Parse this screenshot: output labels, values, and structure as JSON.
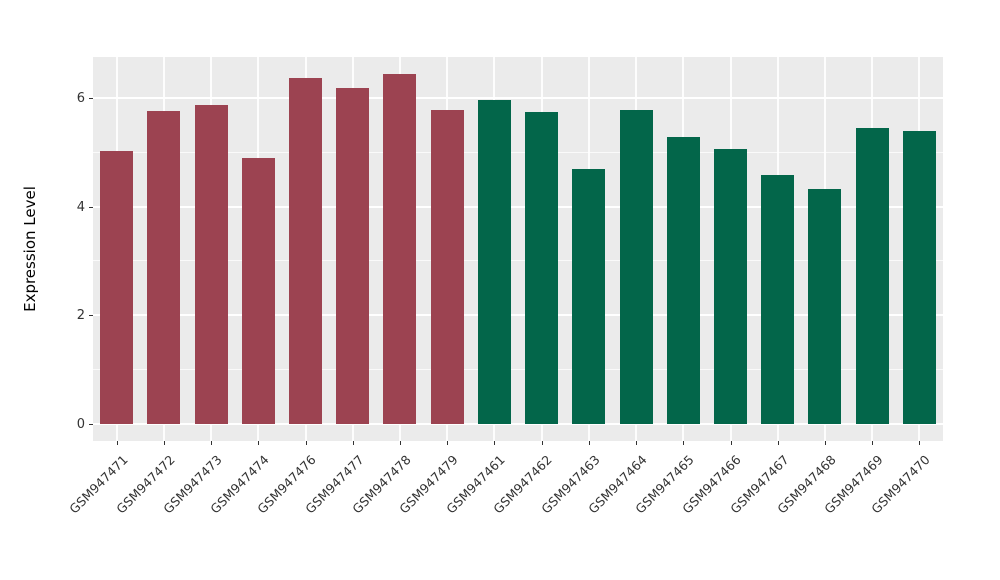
{
  "figure": {
    "background": "#ffffff",
    "panel_background": "#ebebeb",
    "grid_color": "#ffffff",
    "axis_text_color": "#333333",
    "axis_title_color": "#000000"
  },
  "chart_data": {
    "type": "bar",
    "title": "",
    "xlabel": "",
    "ylabel": "Expression Level",
    "ylim": [
      -0.34,
      6.8
    ],
    "yticks": [
      0,
      2,
      4,
      6
    ],
    "minor_yticks": [
      1,
      3,
      5
    ],
    "grid": true,
    "legend_position": "none",
    "categories": [
      "GSM947471",
      "GSM947472",
      "GSM947473",
      "GSM947474",
      "GSM947476",
      "GSM947477",
      "GSM947478",
      "GSM947479",
      "GSM947461",
      "GSM947462",
      "GSM947463",
      "GSM947464",
      "GSM947465",
      "GSM947466",
      "GSM947467",
      "GSM947468",
      "GSM947469",
      "GSM947470"
    ],
    "values": [
      5.03,
      5.76,
      5.88,
      4.9,
      6.37,
      6.18,
      6.45,
      5.78,
      5.97,
      5.74,
      4.69,
      5.78,
      5.28,
      5.06,
      4.58,
      4.33,
      5.44,
      5.4
    ],
    "groups": [
      "group1",
      "group1",
      "group1",
      "group1",
      "group1",
      "group1",
      "group1",
      "group1",
      "group2",
      "group2",
      "group2",
      "group2",
      "group2",
      "group2",
      "group2",
      "group2",
      "group2",
      "group2"
    ],
    "group_colors": {
      "group1": "#9c4351",
      "group2": "#03664a"
    }
  }
}
